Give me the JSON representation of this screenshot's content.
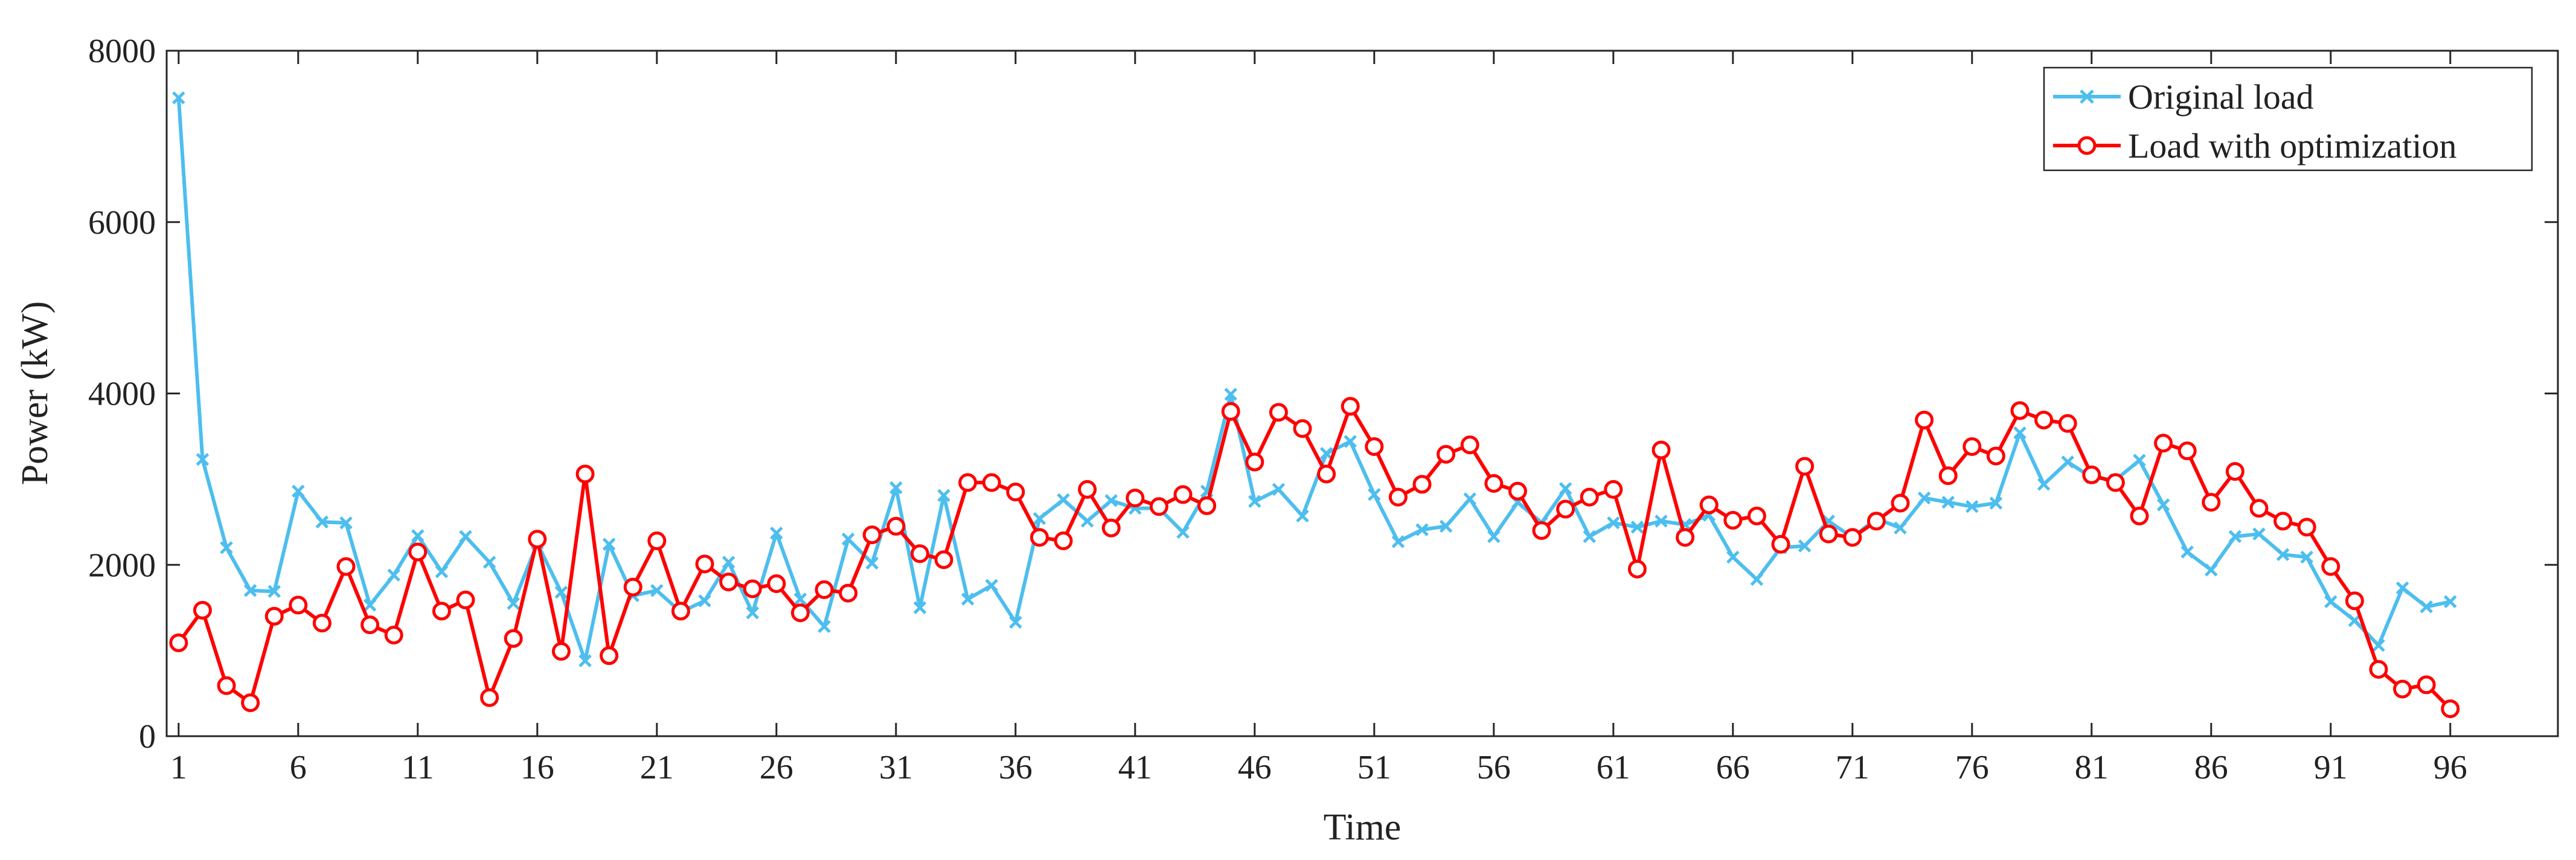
{
  "chart_data": {
    "type": "line",
    "title": "",
    "xlabel": "Time",
    "ylabel": "Power (kW)",
    "xlim": [
      0.5,
      100.5
    ],
    "ylim": [
      0,
      8000
    ],
    "grid": false,
    "legend_position": "top-right",
    "x_tick_labels": [
      "1",
      "6",
      "11",
      "16",
      "21",
      "26",
      "31",
      "36",
      "41",
      "46",
      "51",
      "56",
      "61",
      "66",
      "71",
      "76",
      "81",
      "86",
      "91",
      "96"
    ],
    "y_tick_labels": [
      "0",
      "2000",
      "4000",
      "6000",
      "8000"
    ],
    "x": [
      1,
      2,
      3,
      4,
      5,
      6,
      7,
      8,
      9,
      10,
      11,
      12,
      13,
      14,
      15,
      16,
      17,
      18,
      19,
      20,
      21,
      22,
      23,
      24,
      25,
      26,
      27,
      28,
      29,
      30,
      31,
      32,
      33,
      34,
      35,
      36,
      37,
      38,
      39,
      40,
      41,
      42,
      43,
      44,
      45,
      46,
      47,
      48,
      49,
      50,
      51,
      52,
      53,
      54,
      55,
      56,
      57,
      58,
      59,
      60,
      61,
      62,
      63,
      64,
      65,
      66,
      67,
      68,
      69,
      70,
      71,
      72,
      73,
      74,
      75,
      76,
      77,
      78,
      79,
      80,
      81,
      82,
      83,
      84,
      85,
      86,
      87,
      88,
      89,
      90,
      91,
      92,
      93,
      94,
      95,
      96
    ],
    "series": [
      {
        "name": "Original load",
        "color": "#4dbeee",
        "marker": "x",
        "values": [
          7450,
          3230,
          2200,
          1700,
          1690,
          2860,
          2500,
          2490,
          1530,
          1880,
          2340,
          1920,
          2330,
          2030,
          1550,
          2250,
          1680,
          880,
          2240,
          1640,
          1700,
          1450,
          1580,
          2030,
          1440,
          2370,
          1600,
          1280,
          2300,
          2020,
          2900,
          1500,
          2810,
          1600,
          1760,
          1330,
          2540,
          2760,
          2510,
          2750,
          2660,
          2660,
          2380,
          2860,
          3990,
          2740,
          2880,
          2570,
          3300,
          3440,
          2820,
          2270,
          2410,
          2450,
          2770,
          2330,
          2730,
          2490,
          2890,
          2330,
          2490,
          2440,
          2510,
          2470,
          2580,
          2090,
          1830,
          2200,
          2220,
          2510,
          2320,
          2540,
          2430,
          2780,
          2730,
          2680,
          2720,
          3540,
          2940,
          3200,
          3020,
          2990,
          3220,
          2700,
          2150,
          1940,
          2330,
          2360,
          2120,
          2090,
          1570,
          1350,
          1060,
          1730,
          1510,
          1570
        ]
      },
      {
        "name": "Load with optimization",
        "color": "#ff0000",
        "marker": "o",
        "values": [
          1090,
          1470,
          590,
          390,
          1400,
          1530,
          1320,
          1980,
          1300,
          1180,
          2150,
          1460,
          1590,
          450,
          1140,
          2300,
          990,
          3060,
          940,
          1740,
          2280,
          1460,
          2010,
          1800,
          1720,
          1780,
          1440,
          1710,
          1670,
          2350,
          2450,
          2130,
          2060,
          2960,
          2960,
          2850,
          2320,
          2280,
          2880,
          2430,
          2780,
          2680,
          2820,
          2690,
          3790,
          3200,
          3780,
          3590,
          3060,
          3850,
          3380,
          2790,
          2940,
          3290,
          3400,
          2950,
          2860,
          2400,
          2650,
          2790,
          2880,
          1950,
          3340,
          2320,
          2700,
          2520,
          2570,
          2240,
          3150,
          2360,
          2320,
          2510,
          2720,
          3690,
          3040,
          3380,
          3270,
          3800,
          3690,
          3650,
          3050,
          2960,
          2570,
          3420,
          3330,
          2730,
          3090,
          2660,
          2510,
          2440,
          1980,
          1580,
          780,
          550,
          600,
          320
        ]
      }
    ]
  }
}
